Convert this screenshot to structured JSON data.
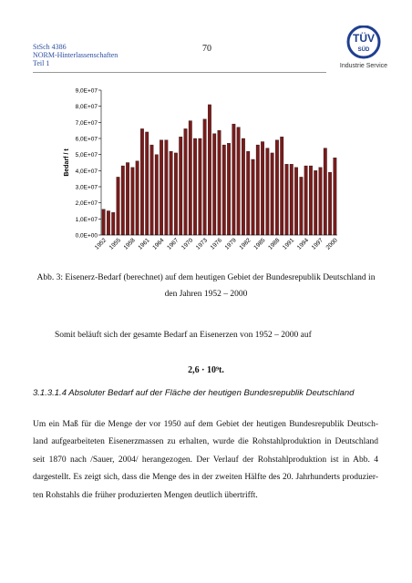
{
  "header": {
    "lines": [
      "StSch 4386",
      "NORM-Hinterlassenschaften",
      "Teil 1"
    ],
    "page_number": "70",
    "logo": {
      "text": "TÜV",
      "sub": "SÜD",
      "caption": "Industrie Service"
    }
  },
  "chart_data": {
    "type": "bar",
    "y_label": "Bedarf / t",
    "color": "#7b1b1b",
    "categories": [
      "1952",
      null,
      null,
      "1955",
      null,
      null,
      "1958",
      null,
      null,
      "1961",
      null,
      null,
      "1964",
      null,
      null,
      "1967",
      null,
      null,
      "1970",
      null,
      null,
      "1973",
      null,
      null,
      "1976",
      null,
      null,
      "1979",
      null,
      null,
      "1982",
      null,
      null,
      "1985",
      null,
      null,
      "1988",
      null,
      null,
      "1991",
      null,
      null,
      "1994",
      null,
      null,
      "1997",
      null,
      null,
      "2000"
    ],
    "values": [
      16000000,
      15000000,
      14000000,
      36000000,
      43000000,
      45000000,
      42000000,
      46000000,
      66000000,
      64000000,
      56000000,
      50000000,
      59000000,
      59000000,
      52000000,
      51000000,
      61000000,
      66000000,
      71000000,
      60000000,
      60000000,
      72000000,
      81000000,
      63000000,
      65000000,
      56000000,
      57000000,
      69000000,
      67000000,
      60000000,
      52000000,
      47000000,
      56000000,
      58000000,
      54000000,
      51000000,
      59000000,
      61000000,
      44000000,
      44000000,
      42000000,
      36000000,
      43000000,
      43000000,
      40000000,
      42000000,
      54000000,
      39000000,
      48000000
    ],
    "ylim": [
      0,
      90000000
    ],
    "yticks": [
      {
        "value": 0,
        "label": "0,0E+00"
      },
      {
        "value": 10000000,
        "label": "1,0E+07"
      },
      {
        "value": 20000000,
        "label": "2,0E+07"
      },
      {
        "value": 30000000,
        "label": "3,0E+07"
      },
      {
        "value": 40000000,
        "label": "4,0E+07"
      },
      {
        "value": 50000000,
        "label": "5,0E+07"
      },
      {
        "value": 60000000,
        "label": "6,0E+07"
      },
      {
        "value": 70000000,
        "label": "7,0E+07"
      },
      {
        "value": 80000000,
        "label": "8,0E+07"
      },
      {
        "value": 90000000,
        "label": "9,0E+07"
      }
    ]
  },
  "caption": [
    "Abb. 3: Eisenerz-Bedarf (berechnet) auf dem heutigen Gebiet der Bundesrepublik Deutschland in",
    "den Jahren 1952 – 2000"
  ],
  "body": {
    "sentence": "Somit beläuft sich der gesamte Bedarf an Eisenerzen von 1952 – 2000 auf",
    "formula": "2,6 · 10⁹t.",
    "heading": "3.1.3.1.4 Absoluter Bedarf auf der Fläche der heutigen Bundesrepublik Deutschland",
    "paragraph": [
      "Um ein Maß für die Menge der vor 1950 auf dem Gebiet der heutigen Bundesrepublik Deutsch-",
      "land aufgearbeiteten Eisenerzmassen zu erhalten, wurde die Rohstahlproduktion in Deutschland",
      "seit 1870 nach /Sauer, 2004/ herangezogen. Der Verlauf der Rohstahlproduktion ist in Abb. 4",
      "dargestellt. Es zeigt sich, dass die Menge des in der zweiten Hälfte des 20. Jahrhunderts produzier-",
      "ten Rohstahls die früher produzierten Mengen deutlich übertrifft."
    ]
  }
}
